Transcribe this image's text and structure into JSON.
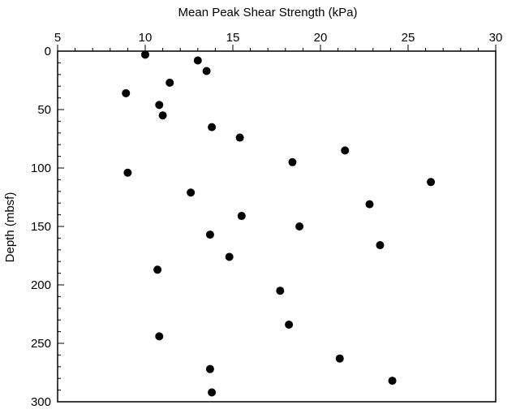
{
  "chart_data": {
    "type": "scatter",
    "title": "",
    "xlabel": "Mean Peak Shear Strength (kPa)",
    "ylabel": "Depth (mbsf)",
    "x_axis_position": "top",
    "y_axis_inverted": true,
    "xlim": [
      5,
      30
    ],
    "ylim": [
      0,
      300
    ],
    "x_ticks": [
      5,
      10,
      15,
      20,
      25,
      30
    ],
    "y_ticks": [
      0,
      50,
      100,
      150,
      200,
      250,
      300
    ],
    "x_minor_step": 1,
    "y_minor_step": 10,
    "grid": false,
    "marker_color": "#000000",
    "points": [
      {
        "x": 10.0,
        "y": 3
      },
      {
        "x": 13.0,
        "y": 8
      },
      {
        "x": 13.5,
        "y": 17
      },
      {
        "x": 11.4,
        "y": 27
      },
      {
        "x": 8.9,
        "y": 36
      },
      {
        "x": 10.8,
        "y": 46
      },
      {
        "x": 11.0,
        "y": 55
      },
      {
        "x": 13.8,
        "y": 65
      },
      {
        "x": 15.4,
        "y": 74
      },
      {
        "x": 21.4,
        "y": 85
      },
      {
        "x": 18.4,
        "y": 95
      },
      {
        "x": 9.0,
        "y": 104
      },
      {
        "x": 26.3,
        "y": 112
      },
      {
        "x": 12.6,
        "y": 121
      },
      {
        "x": 22.8,
        "y": 131
      },
      {
        "x": 15.5,
        "y": 141
      },
      {
        "x": 18.8,
        "y": 150
      },
      {
        "x": 13.7,
        "y": 157
      },
      {
        "x": 23.4,
        "y": 166
      },
      {
        "x": 14.8,
        "y": 176
      },
      {
        "x": 10.7,
        "y": 187
      },
      {
        "x": 17.7,
        "y": 205
      },
      {
        "x": 18.2,
        "y": 234
      },
      {
        "x": 10.8,
        "y": 244
      },
      {
        "x": 21.1,
        "y": 263
      },
      {
        "x": 13.7,
        "y": 272
      },
      {
        "x": 24.1,
        "y": 282
      },
      {
        "x": 13.8,
        "y": 292
      }
    ]
  }
}
